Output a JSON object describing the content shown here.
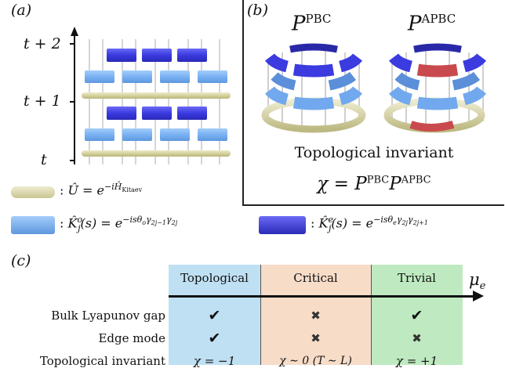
{
  "panel_a": {
    "label": "(a)",
    "time_labels": [
      "t + 2",
      "t + 1",
      "t"
    ]
  },
  "panel_b": {
    "label": "(b)",
    "pbc_label": "P^PBC",
    "apbc_label": "P^APBC",
    "pbc_base": "P",
    "pbc_sup": "PBC",
    "apbc_base": "P",
    "apbc_sup": "APBC",
    "invariant_title": "Topological invariant",
    "invariant_formula": "χ = P^PBC P^APBC"
  },
  "legend": {
    "u_text": ": Û = e^{−iĤ_Kitaev}",
    "u_prefix": ": ",
    "u_main": "Û = e",
    "u_exp": "−iĤ",
    "u_sub": "Kitaev",
    "ko_text": ": K̂ⱼᵒ(s) = e^{−isθₒγ₂ⱼ₋₁γ₂ⱼ}",
    "ko_main": "K̂",
    "ko_sub": "j",
    "ko_sup": "o",
    "ko_mid": "(s) = e",
    "ko_exp": "−isθ",
    "ko_exp_sub": "o",
    "ko_exp_tail": "γ",
    "ko_g1": "2j−1",
    "ko_g2": "2j",
    "ke_text": ": K̂ⱼᵉ(s) = e^{−isθₑγ₂ⱼγ₂ⱼ₊₁}",
    "ke_sup": "e",
    "ke_exp_sub": "e",
    "ke_g1": "2j",
    "ke_g2": "2j+1",
    "colors": {
      "u": "#d9d6a6",
      "ko": "#7fb4f5",
      "ke": "#4646e6"
    }
  },
  "panel_c": {
    "label": "(c)",
    "axis_label": "μ",
    "axis_sub": "e",
    "columns": [
      {
        "name": "Topological",
        "color": "#bfe0f3"
      },
      {
        "name": "Critical",
        "color": "#f7dcc8"
      },
      {
        "name": "Trivial",
        "color": "#bfeac1"
      }
    ],
    "rows": [
      {
        "label": "Bulk Lyapunov gap",
        "values": [
          "✔",
          "✖",
          "✔"
        ]
      },
      {
        "label": "Edge mode",
        "values": [
          "✔",
          "✖",
          "✖"
        ]
      },
      {
        "label": "Topological invariant",
        "values": [
          "χ = −1",
          "χ ∼ 0 (T ∼ L)",
          "χ = +1"
        ]
      }
    ]
  }
}
